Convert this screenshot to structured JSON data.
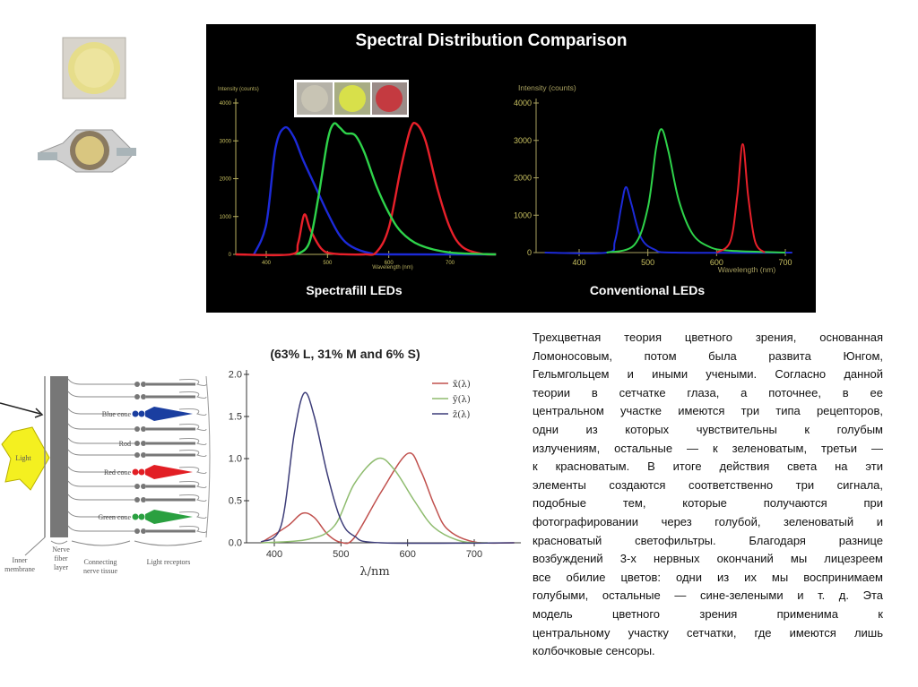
{
  "slide_text_lines": [
    "Трехцветная теория цветного зрения, основанная",
    "Ломоносовым, потом была развита Юнгом,",
    "Гельмгольцем и иными учеными. Согласно данной",
    "теории в сетчатке глаза, а поточнее, в ее",
    "центральном участке имеются три типа рецепторов,",
    "одни из которых чувствительны к голубым",
    "излучениям, остальные — к зеленоватым, третьи —",
    "к красноватым. В итоге действия света на эти",
    "элементы создаются соответственно три сигнала,",
    "подобные тем, которые получаются при",
    "фотографировании через голубой, зеленоватый и",
    "красноватый светофильтры. Благодаря разнице",
    "возбуждений 3-х нервных окончаний мы лицезреем",
    "все обилие цветов: одни из их мы воспринимаем",
    "голубыми, остальные — сине-зелеными и т. д. Эта",
    "модель цветного зрения применима к",
    "центральному участку сетчатки, где имеются лишь",
    "колбочковые сенсоры."
  ],
  "spectral_title": "Spectral Distribution Comparison",
  "retina": {
    "light": "Light",
    "blue_cone": "Blue cone",
    "rod": "Rod",
    "red_cone": "Red cone",
    "green_cone": "Green cone",
    "inner_membrane": [
      "Inner",
      "membrane"
    ],
    "nerve_fiber": [
      "Nerve",
      "fiber",
      "layer"
    ],
    "connecting": [
      "Connecting",
      "nerve tissue"
    ],
    "receptors": "Light receptors"
  },
  "colors": {
    "red": "#e8202a",
    "green": "#2ed34a",
    "blue": "#1c2ad8",
    "axis": "#c8c060",
    "cie_x": "#c0504d",
    "cie_y": "#8fbc6f",
    "cie_z": "#3c3c78"
  },
  "chart_data": [
    {
      "type": "line",
      "title": "Spectrafill LEDs",
      "ylabel": "Intensity (counts)",
      "xlabel": "Wavelength (nm)",
      "xlim": [
        350,
        775
      ],
      "ylim": [
        0,
        4000
      ],
      "xticks": [
        400,
        500,
        600,
        700
      ],
      "yticks": [
        0,
        1000,
        2000,
        3000,
        4000
      ],
      "grid": false,
      "series": [
        {
          "name": "blue",
          "color": "#1c2ad8",
          "points": [
            [
              380,
              0
            ],
            [
              400,
              800
            ],
            [
              415,
              2800
            ],
            [
              430,
              3350
            ],
            [
              445,
              3100
            ],
            [
              460,
              2500
            ],
            [
              480,
              1800
            ],
            [
              500,
              1100
            ],
            [
              520,
              500
            ],
            [
              540,
              200
            ],
            [
              570,
              30
            ],
            [
              600,
              0
            ],
            [
              775,
              0
            ]
          ]
        },
        {
          "name": "red",
          "color": "#e8202a",
          "points": [
            [
              350,
              0
            ],
            [
              440,
              0
            ],
            [
              452,
              300
            ],
            [
              462,
              1050
            ],
            [
              472,
              650
            ],
            [
              490,
              150
            ],
            [
              510,
              20
            ],
            [
              560,
              0
            ],
            [
              580,
              60
            ],
            [
              600,
              700
            ],
            [
              620,
              2300
            ],
            [
              635,
              3300
            ],
            [
              645,
              3450
            ],
            [
              660,
              3000
            ],
            [
              680,
              1700
            ],
            [
              700,
              700
            ],
            [
              720,
              200
            ],
            [
              750,
              20
            ],
            [
              775,
              0
            ]
          ]
        },
        {
          "name": "green",
          "color": "#2ed34a",
          "points": [
            [
              450,
              0
            ],
            [
              470,
              300
            ],
            [
              485,
              1500
            ],
            [
              500,
              3000
            ],
            [
              510,
              3450
            ],
            [
              520,
              3350
            ],
            [
              530,
              3200
            ],
            [
              545,
              3150
            ],
            [
              560,
              2700
            ],
            [
              580,
              1800
            ],
            [
              600,
              1100
            ],
            [
              620,
              600
            ],
            [
              650,
              250
            ],
            [
              700,
              50
            ],
            [
              775,
              0
            ]
          ]
        }
      ]
    },
    {
      "type": "line",
      "title": "Conventional LEDs",
      "ylabel": "Intensity (counts)",
      "xlabel": "Wavelength (nm)",
      "xlim": [
        350,
        710
      ],
      "ylim": [
        0,
        4000
      ],
      "xticks": [
        400,
        500,
        600,
        700
      ],
      "yticks": [
        0,
        1000,
        2000,
        3000,
        4000
      ],
      "grid": false,
      "series": [
        {
          "name": "blue",
          "color": "#1c2ad8",
          "points": [
            [
              350,
              0
            ],
            [
              440,
              0
            ],
            [
              452,
              300
            ],
            [
              461,
              1200
            ],
            [
              468,
              1750
            ],
            [
              476,
              1300
            ],
            [
              490,
              400
            ],
            [
              510,
              80
            ],
            [
              540,
              0
            ],
            [
              710,
              0
            ]
          ]
        },
        {
          "name": "green",
          "color": "#2ed34a",
          "points": [
            [
              440,
              0
            ],
            [
              480,
              200
            ],
            [
              500,
              1200
            ],
            [
              512,
              2800
            ],
            [
              520,
              3300
            ],
            [
              530,
              2700
            ],
            [
              545,
              1400
            ],
            [
              565,
              500
            ],
            [
              590,
              150
            ],
            [
              620,
              50
            ],
            [
              700,
              0
            ]
          ]
        },
        {
          "name": "red",
          "color": "#e8202a",
          "points": [
            [
              600,
              0
            ],
            [
              620,
              300
            ],
            [
              630,
              1500
            ],
            [
              638,
              2900
            ],
            [
              646,
              1500
            ],
            [
              656,
              300
            ],
            [
              670,
              0
            ]
          ]
        }
      ]
    },
    {
      "type": "line",
      "title": "(63% L, 31% M and 6% S)",
      "xlabel": "λ/nm",
      "ylabel": "",
      "xlim": [
        360,
        770
      ],
      "ylim": [
        0,
        2.0
      ],
      "xticks": [
        400,
        500,
        600,
        700
      ],
      "yticks": [
        0.0,
        0.5,
        1.0,
        1.5,
        2.0
      ],
      "grid": false,
      "legend": "top-right",
      "series": [
        {
          "name": "x̄(λ)",
          "color": "#c0504d",
          "points": [
            [
              380,
              0
            ],
            [
              420,
              0.2
            ],
            [
              442,
              0.35
            ],
            [
              460,
              0.3
            ],
            [
              480,
              0.1
            ],
            [
              500,
              0.005
            ],
            [
              520,
              0.06
            ],
            [
              560,
              0.6
            ],
            [
              600,
              1.06
            ],
            [
              620,
              0.85
            ],
            [
              640,
              0.45
            ],
            [
              660,
              0.16
            ],
            [
              700,
              0.01
            ],
            [
              760,
              0
            ]
          ]
        },
        {
          "name": "ȳ(λ)",
          "color": "#8fbc6f",
          "points": [
            [
              380,
              0
            ],
            [
              450,
              0.04
            ],
            [
              490,
              0.2
            ],
            [
              520,
              0.7
            ],
            [
              555,
              1.0
            ],
            [
              580,
              0.87
            ],
            [
              610,
              0.5
            ],
            [
              640,
              0.18
            ],
            [
              680,
              0.02
            ],
            [
              720,
              0
            ]
          ]
        },
        {
          "name": "z̄(λ)",
          "color": "#3c3c78",
          "points": [
            [
              380,
              0.01
            ],
            [
              410,
              0.2
            ],
            [
              430,
              1.3
            ],
            [
              445,
              1.78
            ],
            [
              460,
              1.5
            ],
            [
              480,
              0.8
            ],
            [
              500,
              0.27
            ],
            [
              520,
              0.08
            ],
            [
              560,
              0
            ],
            [
              760,
              0
            ]
          ]
        }
      ]
    }
  ]
}
